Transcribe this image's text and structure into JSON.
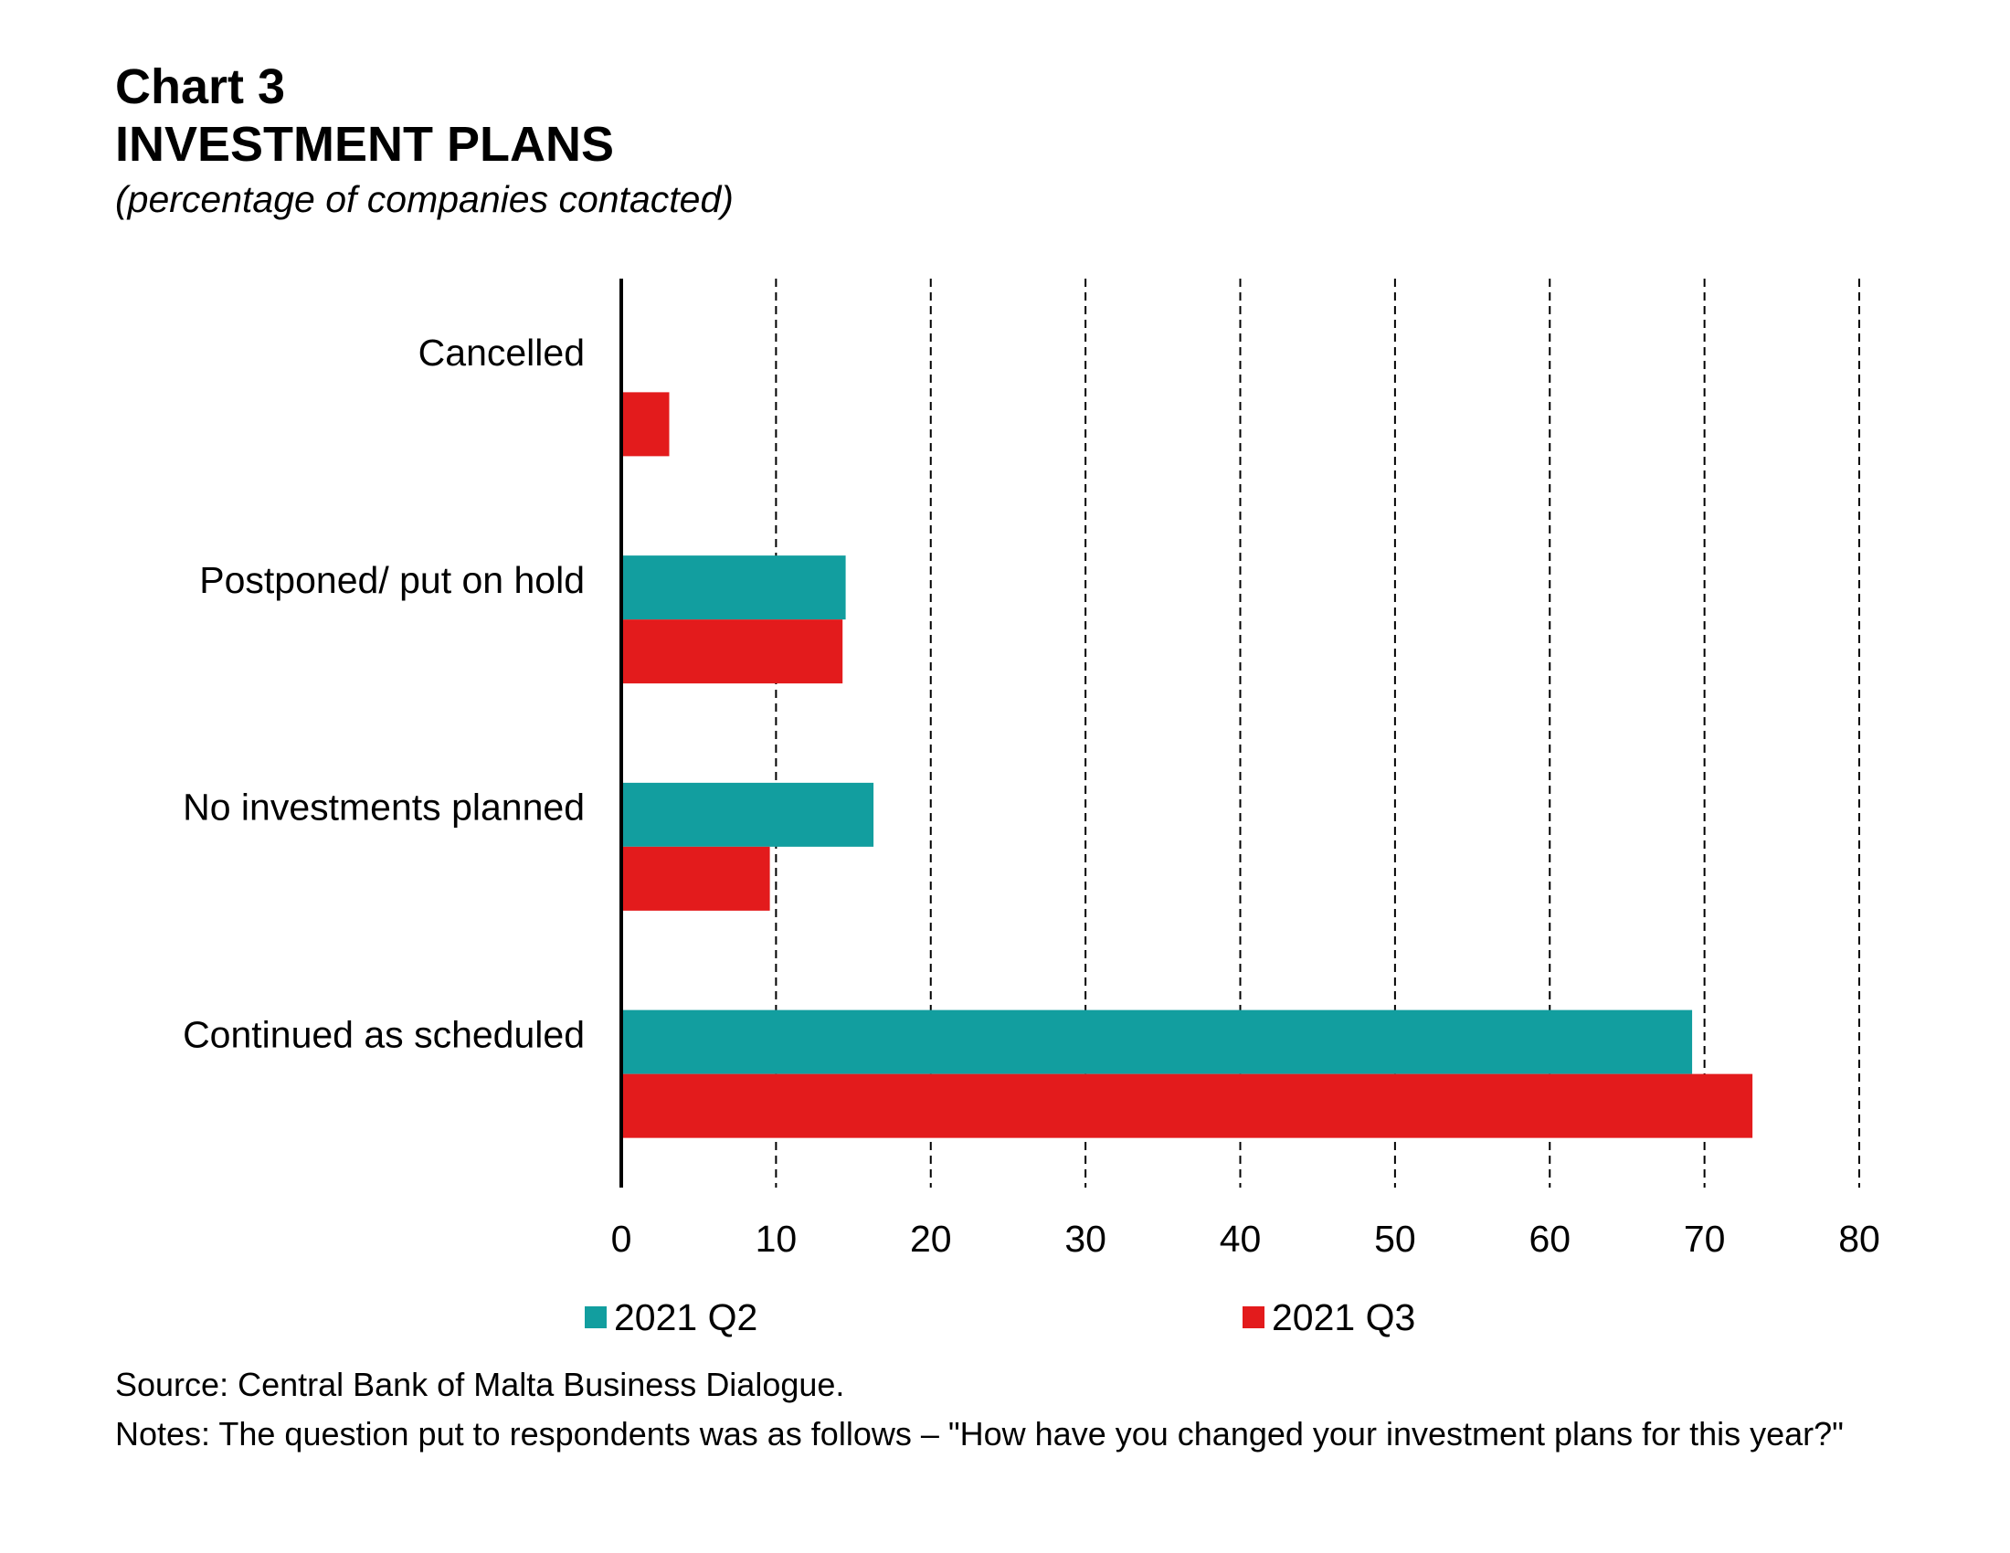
{
  "header": {
    "chart_number": "Chart 3",
    "title": "INVESTMENT PLANS",
    "subtitle": "(percentage of companies contacted)"
  },
  "footer": {
    "source": "Source: Central Bank of Malta Business Dialogue.",
    "notes": "Notes: The question put to respondents was as follows – \"How have you changed your investment plans for this year?\""
  },
  "colors": {
    "q2": "#129E9F",
    "q3": "#E31B1C",
    "axis": "#000000",
    "grid": "#000000"
  },
  "chart_data": {
    "type": "bar",
    "orientation": "horizontal",
    "categories": [
      "Cancelled",
      "Postponed/ put on hold",
      "No investments planned",
      "Continued as scheduled"
    ],
    "series": [
      {
        "name": "2021 Q2",
        "values": [
          0,
          14.5,
          16.3,
          69.2
        ]
      },
      {
        "name": "2021 Q3",
        "values": [
          3.1,
          14.3,
          9.6,
          73.1
        ]
      }
    ],
    "xlim": [
      0,
      80
    ],
    "xticks": [
      "0",
      "10",
      "20",
      "30",
      "40",
      "50",
      "60",
      "70",
      "80"
    ],
    "grid": "vertical dashed",
    "legend_position": "bottom"
  }
}
